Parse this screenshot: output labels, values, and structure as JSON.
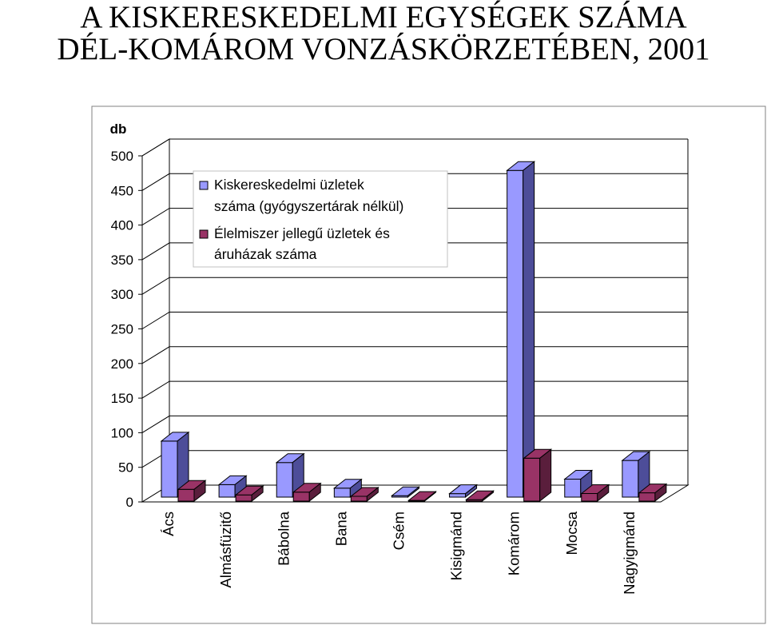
{
  "title": {
    "line1": "A KISKERESKEDELMI EGYSÉGEK SZÁMA",
    "line2": "DÉL-KOMÁROM VONZÁSKÖRZETÉBEN, 2001"
  },
  "colors": {
    "series1": "#9999FF",
    "series1_side": "#4d4d99",
    "series2": "#993366",
    "series2_side": "#5a1e3c"
  },
  "chart_data": {
    "type": "bar",
    "ylabel": "db",
    "ylim": [
      0,
      500
    ],
    "yticks": [
      "0",
      "50",
      "100",
      "150",
      "200",
      "250",
      "300",
      "350",
      "400",
      "450",
      "500"
    ],
    "categories": [
      "Ács",
      "Almásfüzitő",
      "Bábolna",
      "Bana",
      "Csém",
      "Kisigmánd",
      "Komárom",
      "Mocsa",
      "Nagyigmánd"
    ],
    "series": [
      {
        "name": "Kiskereskedelmi üzletek száma (gyógyszertárak nélkül)",
        "legend_lines": [
          "Kiskereskedelmi üzletek",
          "száma (gyógyszertárak nélkül)"
        ],
        "values": [
          81,
          18,
          50,
          13,
          2,
          5,
          472,
          26,
          53
        ]
      },
      {
        "name": "Élelmiszer jellegű üzletek és áruházak száma",
        "legend_lines": [
          "Élelmiszer jellegű  üzletek és",
          "áruházak száma"
        ],
        "values": [
          17,
          9,
          13,
          7,
          1,
          2,
          62,
          11,
          12
        ]
      }
    ],
    "grid": true,
    "legend_position": "top-left"
  }
}
